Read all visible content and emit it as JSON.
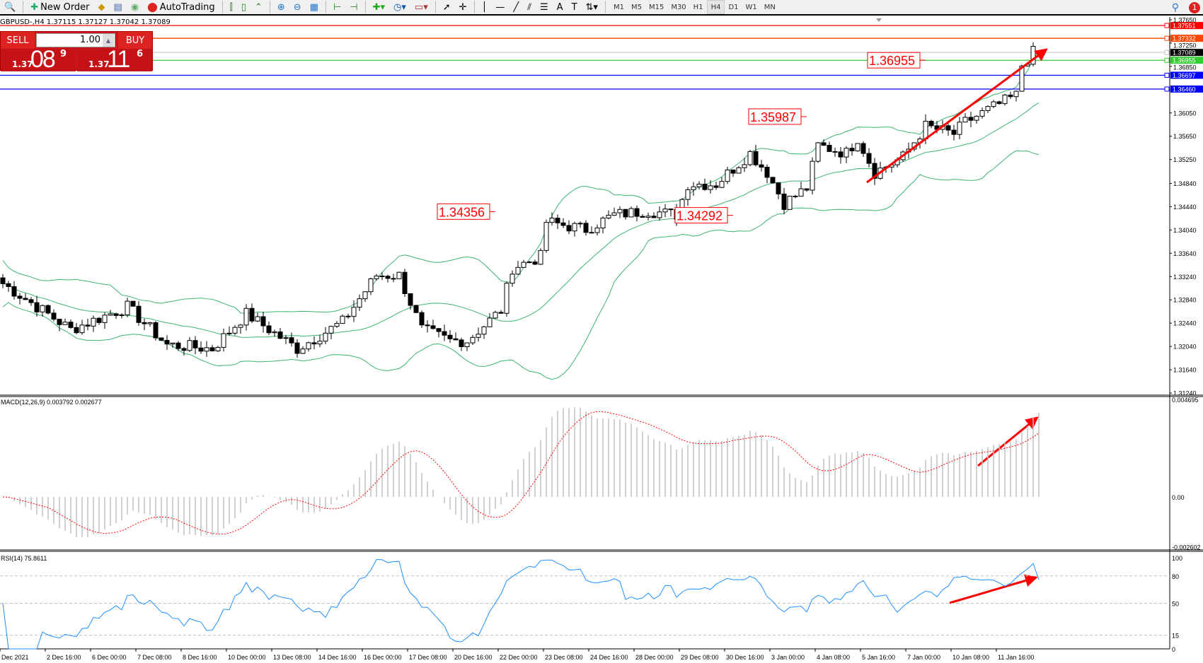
{
  "toolbar": {
    "new_order": "New Order",
    "autotrading": "AutoTrading",
    "timeframes": [
      "M1",
      "M5",
      "M15",
      "M30",
      "H1",
      "H4",
      "D1",
      "W1",
      "MN"
    ],
    "active_timeframe": "H4",
    "notification_count": "1"
  },
  "symbol_line": "GBPUSD-,H4  1.37115 1.37127 1.37042 1.37089",
  "one_click": {
    "sell": "SELL",
    "buy": "BUY",
    "lot": "1.00",
    "bid": {
      "big": "1.37",
      "main": "08",
      "small": "9"
    },
    "ask": {
      "big": "1.37",
      "main": "11",
      "small": "6"
    }
  },
  "price_axis": [
    "1.37650",
    "1.37250",
    "1.36850",
    "1.36050",
    "1.35650",
    "1.35250",
    "1.34840",
    "1.34440",
    "1.34040",
    "1.33640",
    "1.33240",
    "1.32840",
    "1.32440",
    "1.32040",
    "1.31640",
    "1.31240"
  ],
  "hlines": [
    {
      "price": 1.37551,
      "label": "1.37551",
      "color": "#ff0000"
    },
    {
      "price": 1.37332,
      "label": "1.37332",
      "color": "#ff4500"
    },
    {
      "price": 1.37089,
      "label": "1.37089",
      "color": "#c0c0c0",
      "bg": "#000000"
    },
    {
      "price": 1.36955,
      "label": "1.36955",
      "color": "#32cd32"
    },
    {
      "price": 1.36697,
      "label": "1.36697",
      "color": "#0000ff"
    },
    {
      "price": 1.3646,
      "label": "1.36460",
      "color": "#0000ff"
    }
  ],
  "annotations": [
    {
      "text": "1.36955",
      "bar": 163,
      "price": 1.36955
    },
    {
      "text": "1.35987",
      "bar": 142,
      "price": 1.35987
    },
    {
      "text": "1.34356",
      "bar": 87,
      "price": 1.34356
    },
    {
      "text": "1.34292",
      "bar": 129,
      "price": 1.34292
    }
  ],
  "macd": {
    "label": "MACD(12,26,9) 0.003792 0.002677",
    "axis": [
      "0.004695",
      "0.00",
      "-0.002602"
    ],
    "max": 0.004695,
    "min": -0.002602
  },
  "rsi": {
    "label": "RSI(14) 75.8611",
    "axis": [
      "100",
      "80",
      "50",
      "15",
      "0"
    ],
    "levels": [
      80,
      50,
      15
    ]
  },
  "dates": [
    "Dec 2021",
    "2 Dec 16:00",
    "6 Dec 00:00",
    "7 Dec 08:00",
    "8 Dec 16:00",
    "10 Dec 00:00",
    "13 Dec 08:00",
    "14 Dec 16:00",
    "16 Dec 00:00",
    "17 Dec 08:00",
    "20 Dec 16:00",
    "22 Dec 00:00",
    "23 Dec 08:00",
    "24 Dec 16:00",
    "28 Dec 00:00",
    "29 Dec 08:00",
    "30 Dec 16:00",
    "3 Jan 00:00",
    "4 Jan 08:00",
    "5 Jan 16:00",
    "7 Jan 00:00",
    "10 Jan 08:00",
    "11 Jan 16:00"
  ],
  "chart_data": {
    "type": "candlestick",
    "last": {
      "open": 1.37115,
      "high": 1.37127,
      "low": 1.37042,
      "close": 1.37089
    },
    "close_path": [
      [
        0,
        1.3312
      ],
      [
        12,
        1.3233
      ],
      [
        22,
        1.3272
      ],
      [
        29,
        1.3207
      ],
      [
        37,
        1.32
      ],
      [
        43,
        1.326
      ],
      [
        52,
        1.32
      ],
      [
        60,
        1.3246
      ],
      [
        66,
        1.3326
      ],
      [
        70,
        1.3326
      ],
      [
        74,
        1.3233
      ],
      [
        79,
        1.3214
      ],
      [
        82,
        1.3214
      ],
      [
        88,
        1.3266
      ],
      [
        90,
        1.3339
      ],
      [
        95,
        1.3358
      ],
      [
        96,
        1.3418
      ],
      [
        103,
        1.3405
      ],
      [
        108,
        1.343
      ],
      [
        114,
        1.3437
      ],
      [
        119,
        1.343
      ],
      [
        121,
        1.3483
      ],
      [
        126,
        1.3483
      ],
      [
        132,
        1.3536
      ],
      [
        135,
        1.3503
      ],
      [
        138,
        1.345
      ],
      [
        142,
        1.3476
      ],
      [
        144,
        1.3549
      ],
      [
        149,
        1.3536
      ],
      [
        151,
        1.3562
      ],
      [
        154,
        1.3503
      ],
      [
        159,
        1.3529
      ],
      [
        163,
        1.3582
      ],
      [
        168,
        1.3569
      ],
      [
        170,
        1.3589
      ],
      [
        175,
        1.3615
      ],
      [
        179,
        1.3635
      ],
      [
        180,
        1.3687
      ],
      [
        182,
        1.3709
      ],
      [
        183,
        1.37089
      ]
    ]
  }
}
